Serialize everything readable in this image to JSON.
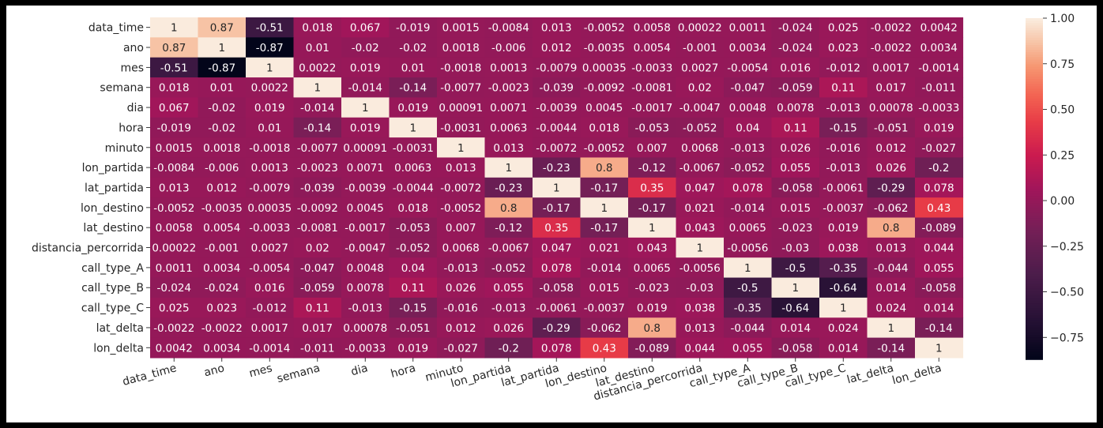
{
  "chart_data": {
    "type": "heatmap",
    "title": "",
    "xlabel": "",
    "ylabel": "",
    "labels": [
      "data_time",
      "ano",
      "mes",
      "semana",
      "dia",
      "hora",
      "minuto",
      "lon_partida",
      "lat_partida",
      "lon_destino",
      "lat_destino",
      "distancia_percorrida",
      "call_type_A",
      "call_type_B",
      "call_type_C",
      "lat_delta",
      "lon_delta"
    ],
    "matrix": [
      [
        "1",
        "0.87",
        "-0.51",
        "0.018",
        "0.067",
        "-0.019",
        "0.0015",
        "-0.0084",
        "0.013",
        "-0.0052",
        "0.0058",
        "0.00022",
        "0.0011",
        "-0.024",
        "0.025",
        "-0.0022",
        "0.0042"
      ],
      [
        "0.87",
        "1",
        "-0.87",
        "0.01",
        "-0.02",
        "-0.02",
        "0.0018",
        "-0.006",
        "0.012",
        "-0.0035",
        "0.0054",
        "-0.001",
        "0.0034",
        "-0.024",
        "0.023",
        "-0.0022",
        "0.0034"
      ],
      [
        "-0.51",
        "-0.87",
        "1",
        "0.0022",
        "0.019",
        "0.01",
        "-0.0018",
        "0.0013",
        "-0.0079",
        "0.00035",
        "-0.0033",
        "0.0027",
        "-0.0054",
        "0.016",
        "-0.012",
        "0.0017",
        "-0.0014"
      ],
      [
        "0.018",
        "0.01",
        "0.0022",
        "1",
        "-0.014",
        "-0.14",
        "-0.0077",
        "-0.0023",
        "-0.039",
        "-0.0092",
        "-0.0081",
        "0.02",
        "-0.047",
        "-0.059",
        "0.11",
        "0.017",
        "-0.011"
      ],
      [
        "0.067",
        "-0.02",
        "0.019",
        "-0.014",
        "1",
        "0.019",
        "0.00091",
        "0.0071",
        "-0.0039",
        "0.0045",
        "-0.0017",
        "-0.0047",
        "0.0048",
        "0.0078",
        "-0.013",
        "0.00078",
        "-0.0033"
      ],
      [
        "-0.019",
        "-0.02",
        "0.01",
        "-0.14",
        "0.019",
        "1",
        "-0.0031",
        "0.0063",
        "-0.0044",
        "0.018",
        "-0.053",
        "-0.052",
        "0.04",
        "0.11",
        "-0.15",
        "-0.051",
        "0.019"
      ],
      [
        "0.0015",
        "0.0018",
        "-0.0018",
        "-0.0077",
        "0.00091",
        "-0.0031",
        "1",
        "0.013",
        "-0.0072",
        "-0.0052",
        "0.007",
        "0.0068",
        "-0.013",
        "0.026",
        "-0.016",
        "0.012",
        "-0.027"
      ],
      [
        "-0.0084",
        "-0.006",
        "0.0013",
        "-0.0023",
        "0.0071",
        "0.0063",
        "0.013",
        "1",
        "-0.23",
        "0.8",
        "-0.12",
        "-0.0067",
        "-0.052",
        "0.055",
        "-0.013",
        "0.026",
        "-0.2"
      ],
      [
        "0.013",
        "0.012",
        "-0.0079",
        "-0.039",
        "-0.0039",
        "-0.0044",
        "-0.0072",
        "-0.23",
        "1",
        "-0.17",
        "0.35",
        "0.047",
        "0.078",
        "-0.058",
        "-0.0061",
        "-0.29",
        "0.078"
      ],
      [
        "-0.0052",
        "-0.0035",
        "0.00035",
        "-0.0092",
        "0.0045",
        "0.018",
        "-0.0052",
        "0.8",
        "-0.17",
        "1",
        "-0.17",
        "0.021",
        "-0.014",
        "0.015",
        "-0.0037",
        "-0.062",
        "0.43"
      ],
      [
        "0.0058",
        "0.0054",
        "-0.0033",
        "-0.0081",
        "-0.0017",
        "-0.053",
        "0.007",
        "-0.12",
        "0.35",
        "-0.17",
        "1",
        "0.043",
        "0.0065",
        "-0.023",
        "0.019",
        "0.8",
        "-0.089"
      ],
      [
        "0.00022",
        "-0.001",
        "0.0027",
        "0.02",
        "-0.0047",
        "-0.052",
        "0.0068",
        "-0.0067",
        "0.047",
        "0.021",
        "0.043",
        "1",
        "-0.0056",
        "-0.03",
        "0.038",
        "0.013",
        "0.044"
      ],
      [
        "0.0011",
        "0.0034",
        "-0.0054",
        "-0.047",
        "0.0048",
        "0.04",
        "-0.013",
        "-0.052",
        "0.078",
        "-0.014",
        "0.0065",
        "-0.0056",
        "1",
        "-0.5",
        "-0.35",
        "-0.044",
        "0.055"
      ],
      [
        "-0.024",
        "-0.024",
        "0.016",
        "-0.059",
        "0.0078",
        "0.11",
        "0.026",
        "0.055",
        "-0.058",
        "0.015",
        "-0.023",
        "-0.03",
        "-0.5",
        "1",
        "-0.64",
        "0.014",
        "-0.058"
      ],
      [
        "0.025",
        "0.023",
        "-0.012",
        "0.11",
        "-0.013",
        "-0.15",
        "-0.016",
        "-0.013",
        "-0.0061",
        "-0.0037",
        "0.019",
        "0.038",
        "-0.35",
        "-0.64",
        "1",
        "0.024",
        "0.014"
      ],
      [
        "-0.0022",
        "-0.0022",
        "0.0017",
        "0.017",
        "0.00078",
        "-0.051",
        "0.012",
        "0.026",
        "-0.29",
        "-0.062",
        "0.8",
        "0.013",
        "-0.044",
        "0.014",
        "0.024",
        "1",
        "-0.14"
      ],
      [
        "0.0042",
        "0.0034",
        "-0.0014",
        "-0.011",
        "-0.0033",
        "0.019",
        "-0.027",
        "-0.2",
        "0.078",
        "0.43",
        "-0.089",
        "0.044",
        "0.055",
        "-0.058",
        "0.014",
        "-0.14",
        "1"
      ]
    ],
    "colorbar": {
      "colormap": "rocket",
      "range": [
        -0.87,
        1.0
      ],
      "ticks": [
        "1.00",
        "0.75",
        "0.50",
        "0.25",
        "0.00",
        "−0.25",
        "−0.50",
        "−0.75"
      ],
      "tick_values": [
        1.0,
        0.75,
        0.5,
        0.25,
        0.0,
        -0.25,
        -0.5,
        -0.75
      ]
    },
    "grid": false,
    "legend": "colorbar-right"
  }
}
